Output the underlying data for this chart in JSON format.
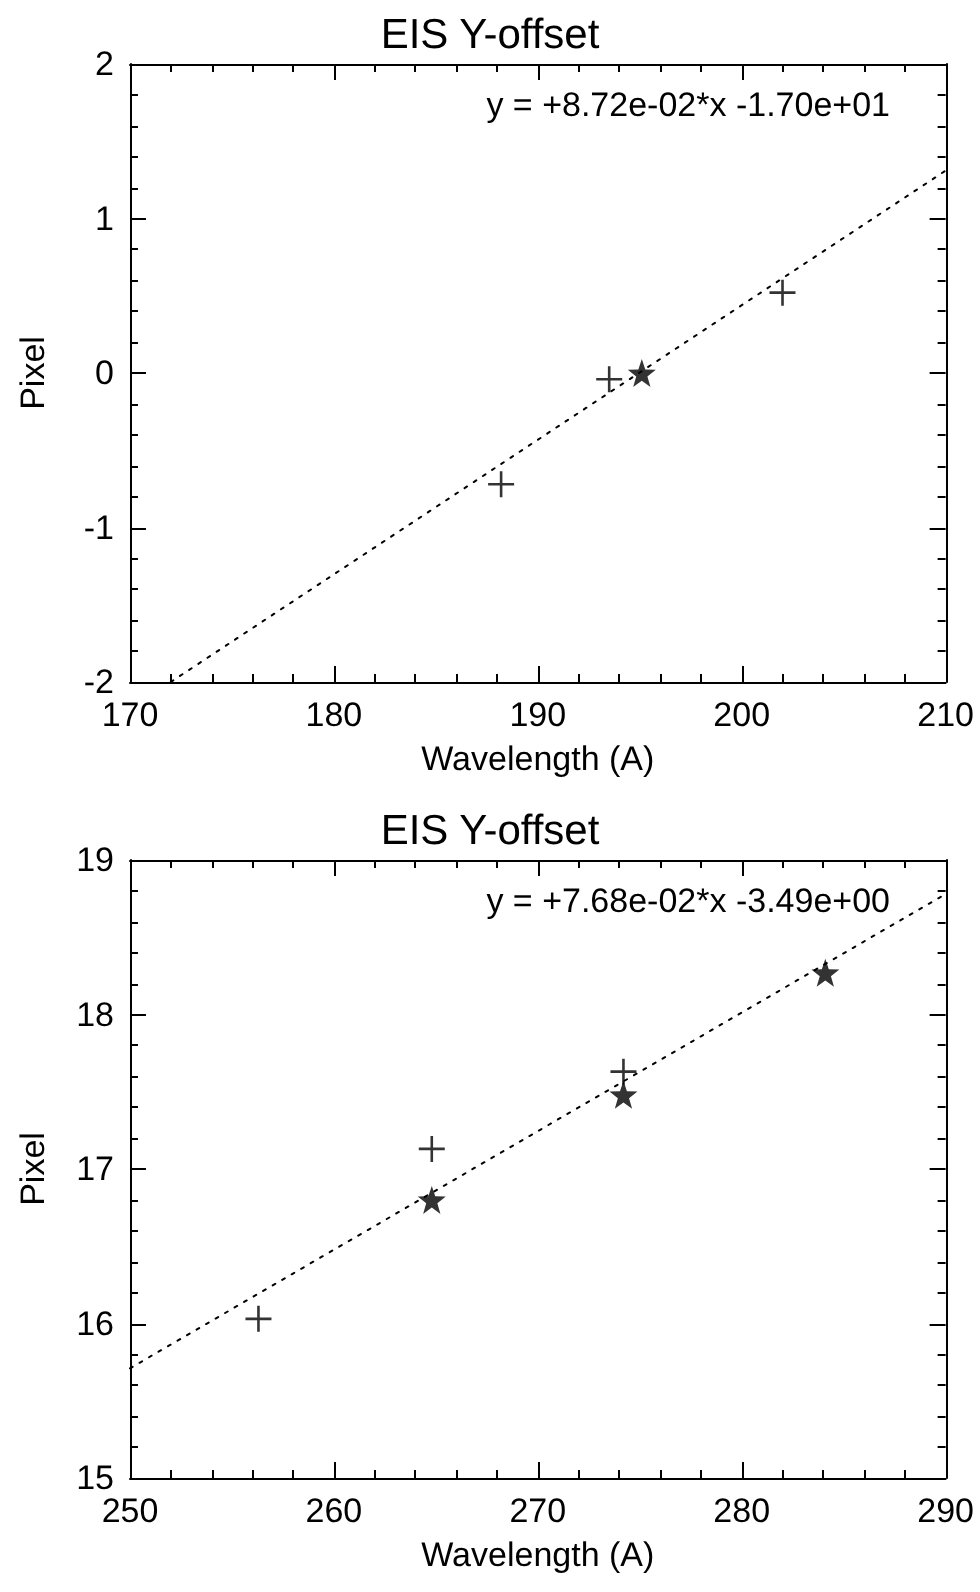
{
  "chart_data": [
    {
      "type": "scatter",
      "title": "EIS Y-offset",
      "xlabel": "Wavelength (A)",
      "ylabel": "Pixel",
      "annotations": [
        "y = +8.72e-02*x -1.70e+01"
      ],
      "xlim": [
        170,
        210
      ],
      "xticks": [
        170,
        180,
        190,
        200,
        210
      ],
      "ylim": [
        -2,
        2
      ],
      "yticks": [
        -2,
        -1,
        0,
        1,
        2
      ],
      "grid": false,
      "series": [
        {
          "color": "#000000",
          "marker": "cross",
          "x": [
            188.2,
            193.5,
            202.0
          ],
          "values": [
            -0.72,
            -0.04,
            0.52
          ]
        },
        {
          "color": "#000000",
          "marker": "star",
          "x": [
            195.1
          ],
          "values": [
            0.0
          ]
        },
        {
          "type": "line",
          "color": "#000000",
          "marker": "none",
          "line_style": "dotted",
          "x": [
            172.0,
            210
          ],
          "values": [
            -2.0,
            1.31
          ]
        }
      ]
    },
    {
      "type": "scatter",
      "title": "EIS Y-offset",
      "xlabel": "Wavelength (A)",
      "ylabel": "Pixel",
      "annotations": [
        "y = +7.68e-02*x -3.49e+00"
      ],
      "xlim": [
        250,
        290
      ],
      "xticks": [
        250,
        260,
        270,
        280,
        290
      ],
      "ylim": [
        15,
        19
      ],
      "yticks": [
        15,
        16,
        17,
        18,
        19
      ],
      "grid": false,
      "series": [
        {
          "color": "#000000",
          "marker": "cross",
          "x": [
            256.3,
            264.8,
            274.2
          ],
          "values": [
            16.03,
            17.13,
            17.63
          ]
        },
        {
          "color": "#000000",
          "marker": "star",
          "x": [
            264.8,
            274.2,
            284.1
          ],
          "values": [
            16.8,
            17.48,
            18.27
          ]
        },
        {
          "type": "line",
          "color": "#000000",
          "marker": "none",
          "line_style": "dotted",
          "x": [
            250,
            290
          ],
          "values": [
            15.71,
            18.78
          ]
        }
      ]
    }
  ]
}
